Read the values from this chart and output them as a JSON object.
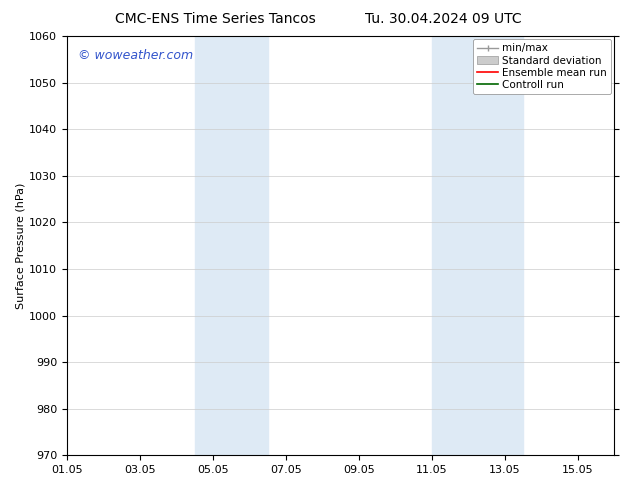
{
  "title_left": "CMC-ENS Time Series Tancos",
  "title_right": "Tu. 30.04.2024 09 UTC",
  "ylabel": "Surface Pressure (hPa)",
  "ylim": [
    970,
    1060
  ],
  "yticks": [
    970,
    980,
    990,
    1000,
    1010,
    1020,
    1030,
    1040,
    1050,
    1060
  ],
  "xtick_labels": [
    "01.05",
    "03.05",
    "05.05",
    "07.05",
    "09.05",
    "11.05",
    "13.05",
    "15.05"
  ],
  "xtick_positions": [
    0,
    2,
    4,
    6,
    8,
    10,
    12,
    14
  ],
  "xlim": [
    0,
    15
  ],
  "shaded_regions": [
    {
      "x_start": 3.5,
      "x_end": 5.5
    },
    {
      "x_start": 10.0,
      "x_end": 12.5
    }
  ],
  "shaded_color": "#deeaf5",
  "background_color": "#ffffff",
  "watermark_text": "© woweather.com",
  "watermark_color": "#3355cc",
  "grid_color": "#cccccc",
  "title_fontsize": 10,
  "ylabel_fontsize": 8,
  "tick_fontsize": 8,
  "legend_fontsize": 7.5,
  "minmax_color": "#999999",
  "std_color": "#cccccc",
  "ensemble_color": "#ff0000",
  "control_color": "#006600"
}
